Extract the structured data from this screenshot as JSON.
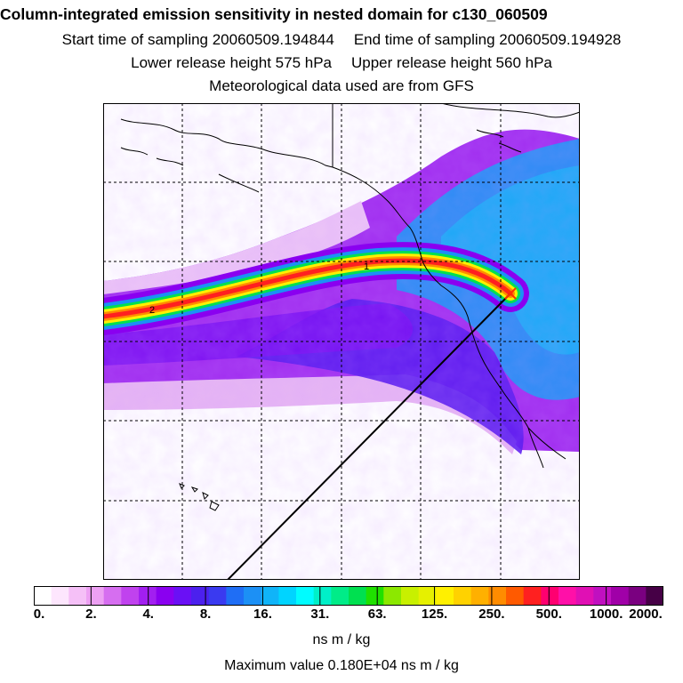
{
  "title": "Column-integrated emission sensitivity in nested domain for c130_060509",
  "sampling": {
    "start": "Start time of sampling 20060509.194844",
    "end": "End time of sampling 20060509.194928"
  },
  "release": {
    "lower": "Lower release height  575 hPa",
    "upper": "Upper release height  560 hPa"
  },
  "met_note": "Meteorological data used are from GFS",
  "map": {
    "trajectory_labels": [
      "1",
      "2"
    ],
    "background_color": "#ffffff",
    "coastline_color": "#000000"
  },
  "colorbar": {
    "tick_labels": [
      "0.",
      "2.",
      "4.",
      "8.",
      "16.",
      "31.",
      "63.",
      "125.",
      "250.",
      "500.",
      "1000.",
      "2000."
    ],
    "unit": "ns m / kg",
    "colors": [
      "#ffffff",
      "#fde6fd",
      "#f5c0f7",
      "#eda0f3",
      "#d66ef0",
      "#c042ee",
      "#a21ff0",
      "#8a00f0",
      "#6a10f5",
      "#4c20ee",
      "#3a3af0",
      "#1f6ef5",
      "#1c90f5",
      "#10b4f8",
      "#00d4ff",
      "#00fcff",
      "#00f0c8",
      "#00ec88",
      "#00e050",
      "#20e000",
      "#8ce800",
      "#c8f000",
      "#e6f000",
      "#fff000",
      "#ffd200",
      "#ffb000",
      "#ff8c00",
      "#ff5a00",
      "#ff2020",
      "#ff0070",
      "#ff10a8",
      "#e010b4",
      "#c010c0",
      "#a000a8",
      "#7a0080",
      "#460046"
    ]
  },
  "maximum": "Maximum value  0.180E+04 ns m / kg"
}
